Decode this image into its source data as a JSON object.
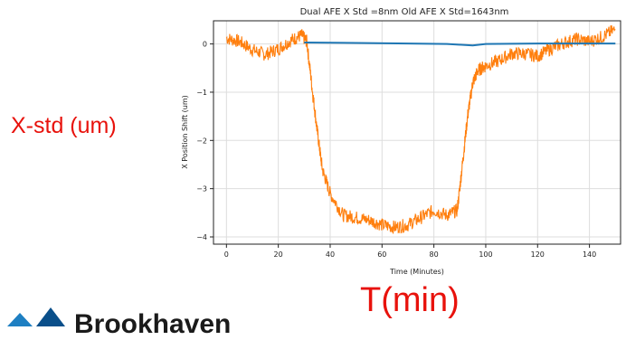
{
  "overlay": {
    "y_annotation": "X-std (um)",
    "x_annotation": "T(min)"
  },
  "logo": {
    "text": "Brookhaven",
    "mark": "brookhaven-logo"
  },
  "colors": {
    "annotation": "#e8120c",
    "series_old": "#ff7f0e",
    "series_dual": "#1f77b4",
    "grid": "#dddddd"
  },
  "chart_data": {
    "type": "line",
    "title": "Dual AFE X Std =8nm   Old AFE X Std=1643nm",
    "xlabel": "Time (Minutes)",
    "ylabel": "X Position Shift (um)",
    "xlim": [
      -5,
      152
    ],
    "ylim": [
      -4.15,
      0.48
    ],
    "xticks": [
      0,
      20,
      40,
      60,
      80,
      100,
      120,
      140
    ],
    "yticks": [
      0,
      -1,
      -2,
      -3,
      -4
    ],
    "grid": true,
    "series": [
      {
        "color": "#ff7f0e",
        "x": [
          0,
          5,
          10,
          15,
          20,
          25,
          29,
          31,
          33,
          35,
          37,
          40,
          45,
          50,
          55,
          60,
          65,
          70,
          75,
          80,
          85,
          89,
          91,
          93,
          95,
          97,
          100,
          105,
          110,
          115,
          120,
          125,
          130,
          135,
          140,
          145,
          150
        ],
        "y": [
          0.12,
          0.05,
          -0.12,
          -0.22,
          -0.1,
          0.08,
          0.18,
          0.05,
          -0.9,
          -1.8,
          -2.6,
          -3.1,
          -3.55,
          -3.6,
          -3.65,
          -3.75,
          -3.8,
          -3.75,
          -3.6,
          -3.45,
          -3.55,
          -3.45,
          -2.5,
          -1.5,
          -0.8,
          -0.55,
          -0.45,
          -0.35,
          -0.2,
          -0.2,
          -0.25,
          -0.1,
          0.02,
          0.1,
          0.05,
          0.15,
          0.3
        ]
      },
      {
        "color": "#1f77b4",
        "x": [
          30,
          50,
          70,
          85,
          95,
          100,
          120,
          150
        ],
        "y": [
          0.03,
          0.02,
          0.01,
          0.0,
          -0.03,
          0.0,
          0.01,
          0.01
        ]
      }
    ]
  }
}
